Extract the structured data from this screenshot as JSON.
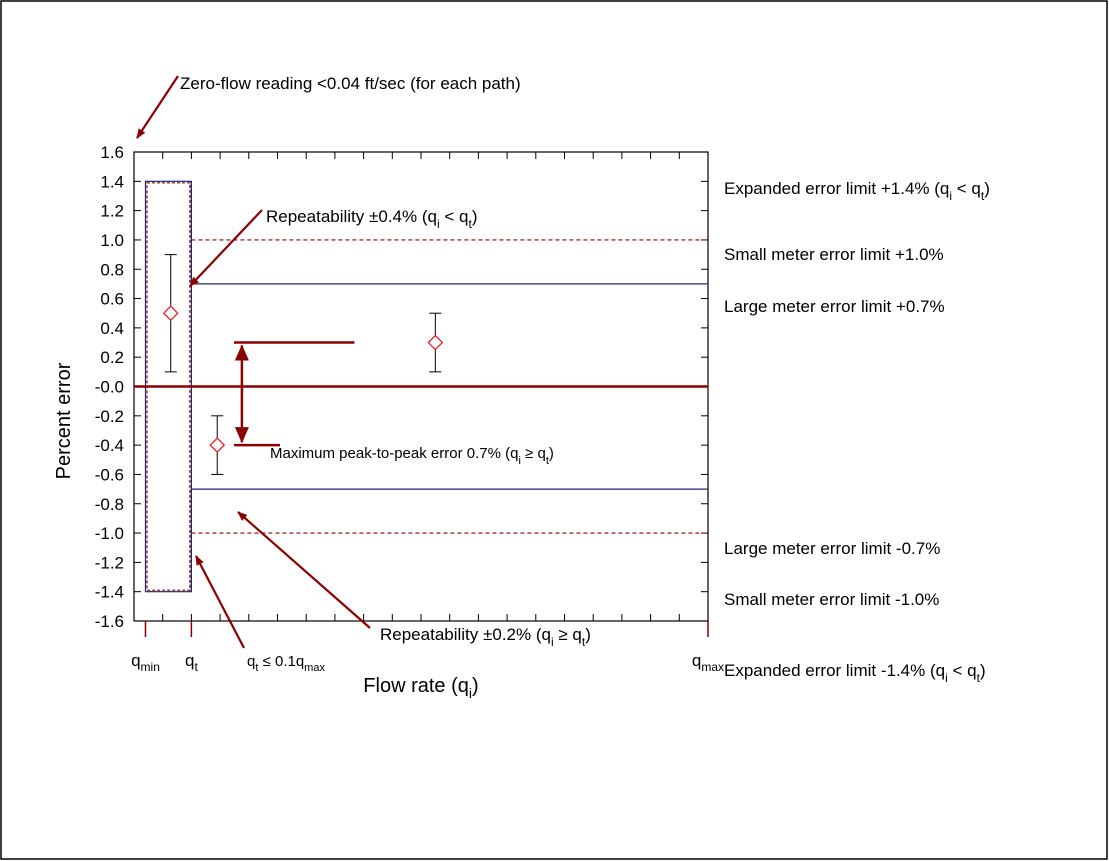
{
  "chart_data": {
    "type": "scatter",
    "title": "",
    "xlabel": "Flow rate (q_i)",
    "ylabel": "Percent error",
    "x_range": [
      0,
      100
    ],
    "ylim": [
      -1.6,
      1.6
    ],
    "y_ticks": [
      "1.6",
      "1.4",
      "1.2",
      "1.0",
      "0.8",
      "0.6",
      "0.4",
      "0.2",
      "-0.0",
      "-0.2",
      "-0.4",
      "-0.6",
      "-0.8",
      "-1.0",
      "-1.2",
      "-1.4",
      "-1.6"
    ],
    "x_tick_labels": [
      {
        "base": "q",
        "sub": "min",
        "x": 2
      },
      {
        "base": "q",
        "sub": "t",
        "x": 10
      },
      {
        "base": "q",
        "sub": "max",
        "x": 100
      }
    ],
    "points": [
      {
        "x": 6.4,
        "y": 0.5,
        "err_low": 0.1,
        "err_high": 0.9
      },
      {
        "x": 52.5,
        "y": 0.3,
        "err_low": 0.1,
        "err_high": 0.5
      },
      {
        "x": 14.5,
        "y": -0.4,
        "err_low": -0.6,
        "err_high": -0.2
      }
    ],
    "limits": {
      "expanded": {
        "x": [
          2,
          10
        ],
        "y": [
          -1.4,
          1.4
        ]
      },
      "large_meter": {
        "from_x": 10,
        "y": 0.7
      },
      "small_meter": {
        "from_x": 10,
        "y": 1.0
      },
      "zero_line": 0.0,
      "peak_to_peak": {
        "x_start": 17.6,
        "x_end": 38.4,
        "y_top": 0.3,
        "y_bottom": -0.4,
        "arrow_x": 18.8
      }
    },
    "annotations": {
      "zero_flow": "Zero-flow reading <0.04 ft/sec (for each path)",
      "repeat_high": {
        "pre": "Repeatability ",
        "sym": "±",
        "mid": "0.4% (q",
        "s1": "i",
        "op": " < q",
        "s2": "t",
        "end": ")"
      },
      "repeat_low": {
        "pre": "Repeatability ",
        "sym": "±",
        "mid": "0.2% (q",
        "s1": "i",
        "op": " ≥ q",
        "s2": "t",
        "end": ")"
      },
      "peak_to_peak": {
        "pre": "Maximum peak-to-peak error 0.7% (q",
        "s1": "i",
        "op": " ≥ q",
        "s2": "t",
        "end": ")"
      },
      "qt_rule": {
        "b1": "q",
        "s1": "t",
        "op": " ≤ 0.1q",
        "s2": "max"
      },
      "expanded_plus": {
        "pre": "Expanded error limit +1.4% (q",
        "s1": "i",
        "op": " < q",
        "s2": "t",
        "end": ")"
      },
      "small_plus": "Small meter error limit +1.0%",
      "large_plus": "Large meter error limit +0.7%",
      "large_minus": "Large meter error limit -0.7%",
      "small_minus": "Small meter error limit -1.0%",
      "expanded_minus": {
        "pre": "Expanded error limit -1.4% (q",
        "s1": "i",
        "op": " < q",
        "s2": "t",
        "end": ")"
      }
    },
    "colors": {
      "dark_red": "#8b0000",
      "navy": "#1f2a6e",
      "marker": "#e8202a",
      "frame": "#000000"
    },
    "grid": false
  }
}
